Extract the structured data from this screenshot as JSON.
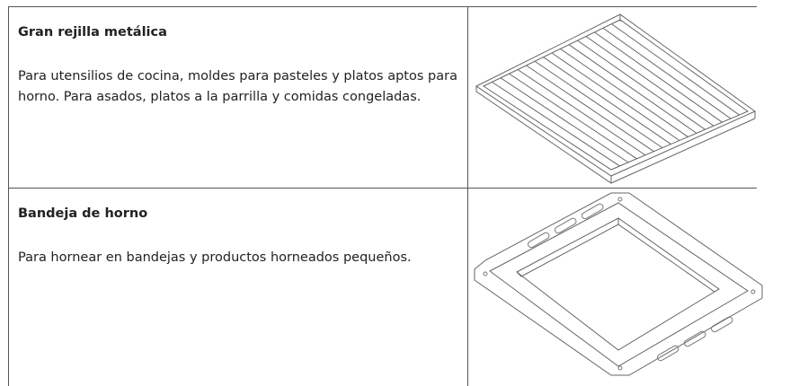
{
  "table": {
    "rows": [
      {
        "title": "Gran rejilla metálica",
        "text": "Para utensilios de cocina, moldes para pasteles y platos aptos para horno. Para asados, platos a la parrilla y comidas congeladas."
      },
      {
        "title": "Bandeja de horno",
        "text": "Para hornear en bandejas y productos horneados pequeños."
      }
    ]
  }
}
